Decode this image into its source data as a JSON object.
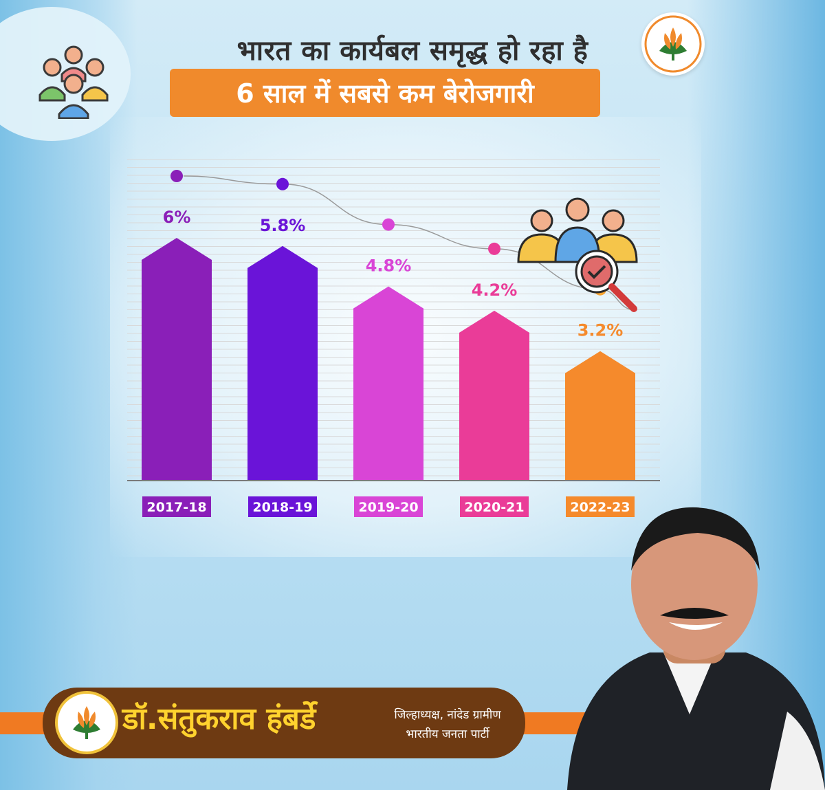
{
  "header": {
    "title": "भारत का कार्यबल समृद्ध हो रहा है",
    "subtitle": "6 साल में सबसे कम बेरोजगारी"
  },
  "icons": {
    "top_left": "people-group-icon",
    "top_right_logo": "bjp-lotus-logo",
    "chart_icon": "workforce-search-icon"
  },
  "colors": {
    "subtitle_bg": "#f08a2c",
    "name_bar_bg": "#6e3a12",
    "name_text": "#ffd22e",
    "accent_orange": "#f07a22"
  },
  "chart_data": {
    "type": "bar",
    "categories": [
      "2017-18",
      "2018-19",
      "2019-20",
      "2020-21",
      "2022-23"
    ],
    "values": [
      6.0,
      5.8,
      4.8,
      4.2,
      3.2
    ],
    "labels": [
      "6%",
      "5.8%",
      "4.8%",
      "4.2%",
      "3.2%"
    ],
    "colors": [
      "#8a1fb8",
      "#6a14d8",
      "#d945d6",
      "#ea3c98",
      "#f58a2c"
    ],
    "dot_colors": [
      "#8a1fb8",
      "#6a14d8",
      "#d945d6",
      "#ea3c98",
      "#f7a431"
    ],
    "title": "",
    "xlabel": "",
    "ylabel": "",
    "grid": true,
    "legend": "none"
  },
  "footer": {
    "name": "डॉ.संतुकराव हंबर्डे",
    "role_line1": "जिल्हाध्यक्ष, नांदेड ग्रामीण",
    "role_line2": "भारतीय जनता पार्टी"
  }
}
